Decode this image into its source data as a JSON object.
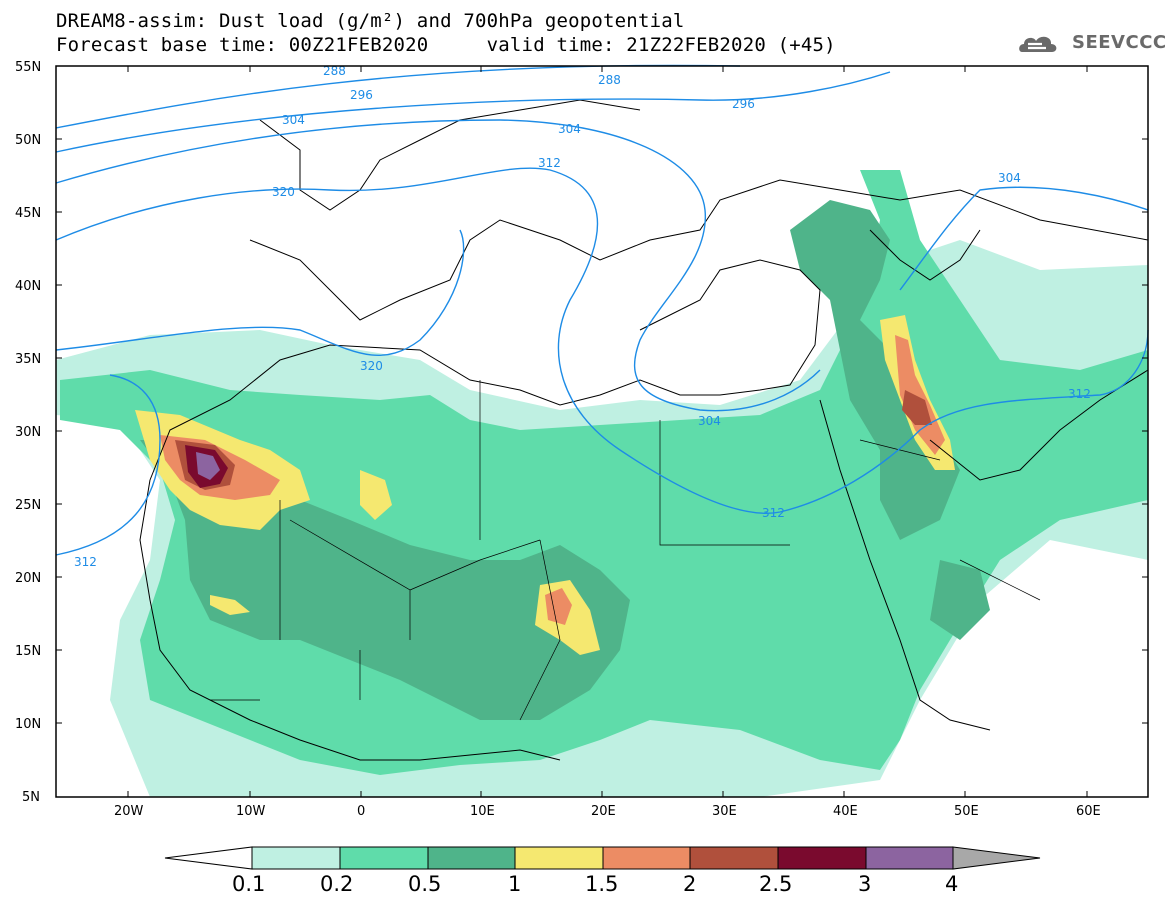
{
  "header": {
    "line1": "DREAM8-assim: Dust load (g/m²) and 700hPa geopotential",
    "line2": "Forecast base time: 00Z21FEB2020     valid time: 21Z22FEB2020 (+45)"
  },
  "logo": {
    "text": "SEEVCCC",
    "icon": "cloud-icon"
  },
  "map": {
    "lat_labels": [
      "55N",
      "50N",
      "45N",
      "40N",
      "35N",
      "30N",
      "25N",
      "20N",
      "15N",
      "10N",
      "5N"
    ],
    "lon_labels": [
      "20W",
      "10W",
      "0",
      "10E",
      "20E",
      "30E",
      "40E",
      "50E",
      "60E"
    ],
    "contour_labels": [
      "288",
      "288",
      "296",
      "296",
      "304",
      "304",
      "304",
      "304",
      "312",
      "312",
      "312",
      "312",
      "320",
      "320"
    ]
  },
  "colorbar": {
    "labels": [
      "0.1",
      "0.2",
      "0.5",
      "1",
      "1.5",
      "2",
      "2.5",
      "3",
      "4"
    ],
    "colors": [
      "#bff0e2",
      "#5fdcaa",
      "#4fb48a",
      "#f5e870",
      "#ec8c64",
      "#b0503c",
      "#7a0a2e",
      "#8c64a0"
    ],
    "under_color": "#ffffff",
    "over_color": "#a8a8a8"
  }
}
